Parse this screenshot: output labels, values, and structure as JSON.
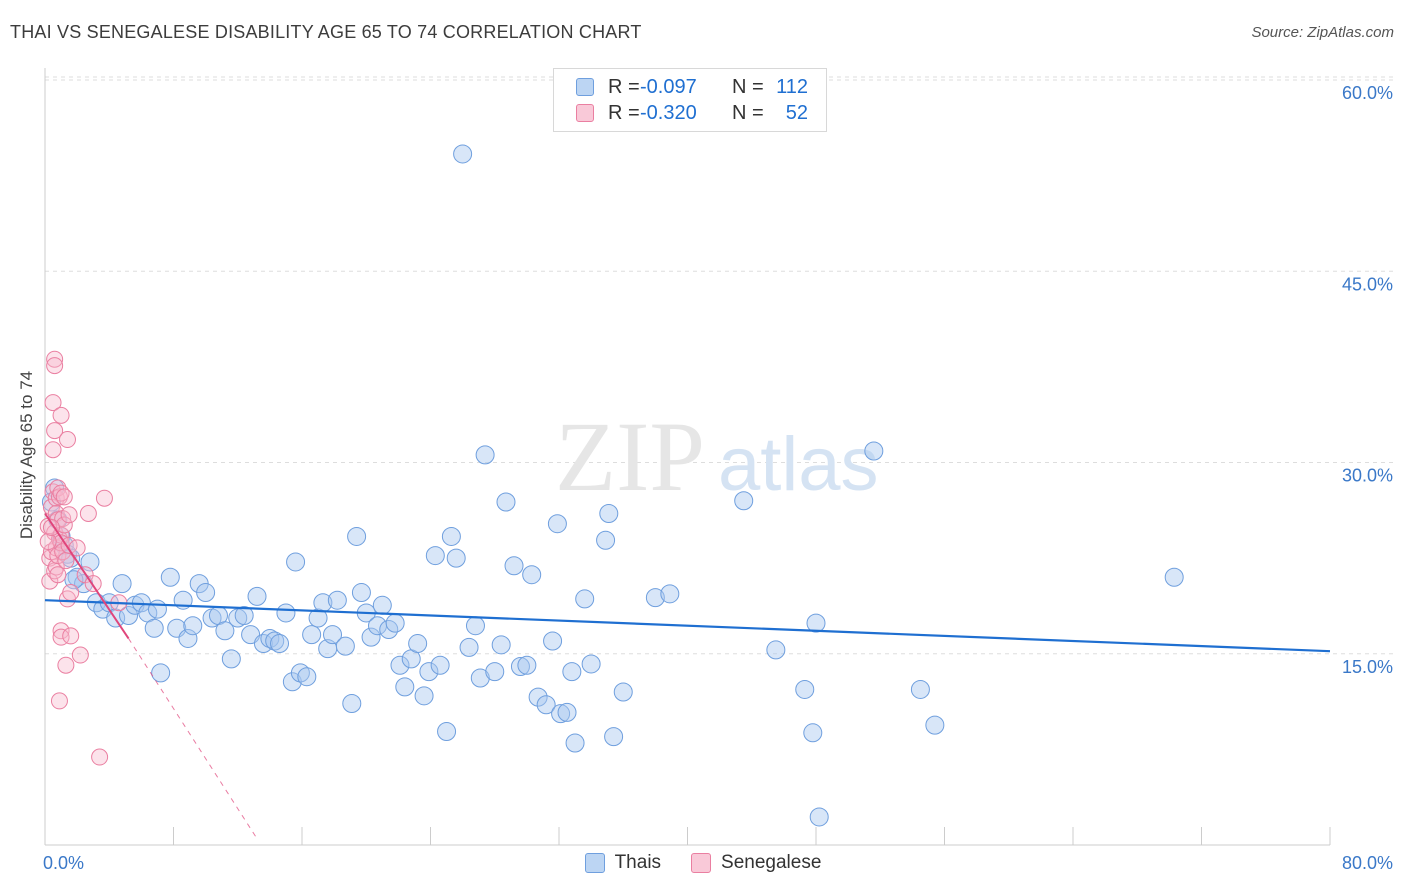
{
  "title": "THAI VS SENEGALESE DISABILITY AGE 65 TO 74 CORRELATION CHART",
  "source": "Source: ZipAtlas.com",
  "watermark": {
    "zip": "ZIP",
    "atlas": "atlas"
  },
  "colors": {
    "thais_fill": "#a8c8f0",
    "thais_stroke": "#6f9fde",
    "thais_line": "#1f6fd1",
    "senegalese_fill": "#f7b8cc",
    "senegalese_stroke": "#ea7fa1",
    "senegalese_line": "#e0457b",
    "axis_text": "#3a78c8",
    "grid": "#dddddd"
  },
  "legend": {
    "thais": {
      "r_label": "R =",
      "r_value": "-0.097",
      "n_label": "N =",
      "n_value": "112"
    },
    "senegalese": {
      "r_label": "R =",
      "r_value": "-0.320",
      "n_label": "N =",
      "n_value": "52"
    }
  },
  "chart_data": {
    "type": "scatter",
    "title": "THAI VS SENEGALESE DISABILITY AGE 65 TO 74 CORRELATION CHART",
    "xlabel": "",
    "ylabel": "Disability Age 65 to 74",
    "xlim": [
      0,
      80
    ],
    "ylim": [
      0,
      60
    ],
    "x_tick_labels": [
      "0.0%",
      "80.0%"
    ],
    "y_ticks": [
      15,
      30,
      45,
      60
    ],
    "y_tick_labels": [
      "15.0%",
      "30.0%",
      "45.0%",
      "60.0%"
    ],
    "legend_position": "bottom-center",
    "series": [
      {
        "name": "Thais",
        "trend": {
          "x": [
            0,
            80
          ],
          "y": [
            19.2,
            15.2
          ]
        },
        "points": [
          [
            0.6,
            28.0
          ],
          [
            0.8,
            25.5
          ],
          [
            1.0,
            24.2
          ],
          [
            1.2,
            23.5
          ],
          [
            1.4,
            22.8
          ],
          [
            1.6,
            22.5
          ],
          [
            2.0,
            21.0
          ],
          [
            2.4,
            20.5
          ],
          [
            2.8,
            22.2
          ],
          [
            3.2,
            19.0
          ],
          [
            3.6,
            18.5
          ],
          [
            4.0,
            19.0
          ],
          [
            4.4,
            17.8
          ],
          [
            4.8,
            20.5
          ],
          [
            5.2,
            18.0
          ],
          [
            5.6,
            18.8
          ],
          [
            6.0,
            19.0
          ],
          [
            6.4,
            18.2
          ],
          [
            6.8,
            17.0
          ],
          [
            7.0,
            18.5
          ],
          [
            7.2,
            13.5
          ],
          [
            7.8,
            21.0
          ],
          [
            8.2,
            17.0
          ],
          [
            8.6,
            19.2
          ],
          [
            8.9,
            16.2
          ],
          [
            9.2,
            17.2
          ],
          [
            9.6,
            20.5
          ],
          [
            10.0,
            19.8
          ],
          [
            10.4,
            17.8
          ],
          [
            10.8,
            18.0
          ],
          [
            11.2,
            16.8
          ],
          [
            11.6,
            14.6
          ],
          [
            12.0,
            17.8
          ],
          [
            12.4,
            18.0
          ],
          [
            12.8,
            16.5
          ],
          [
            13.2,
            19.5
          ],
          [
            13.6,
            15.8
          ],
          [
            14.0,
            16.2
          ],
          [
            14.3,
            16.0
          ],
          [
            14.6,
            15.8
          ],
          [
            15.0,
            18.2
          ],
          [
            15.4,
            12.8
          ],
          [
            15.6,
            22.2
          ],
          [
            15.9,
            13.5
          ],
          [
            16.3,
            13.2
          ],
          [
            16.6,
            16.5
          ],
          [
            17.0,
            17.8
          ],
          [
            17.3,
            19.0
          ],
          [
            17.6,
            15.4
          ],
          [
            17.9,
            16.5
          ],
          [
            18.2,
            19.2
          ],
          [
            18.7,
            15.6
          ],
          [
            19.1,
            11.1
          ],
          [
            19.4,
            24.2
          ],
          [
            19.7,
            19.8
          ],
          [
            20.0,
            18.2
          ],
          [
            20.3,
            16.3
          ],
          [
            20.7,
            17.2
          ],
          [
            21.0,
            18.8
          ],
          [
            21.4,
            16.9
          ],
          [
            21.8,
            17.4
          ],
          [
            22.1,
            14.1
          ],
          [
            22.4,
            12.4
          ],
          [
            22.8,
            14.6
          ],
          [
            23.2,
            15.8
          ],
          [
            23.6,
            11.7
          ],
          [
            23.9,
            13.6
          ],
          [
            24.3,
            22.7
          ],
          [
            24.6,
            14.1
          ],
          [
            25.0,
            8.9
          ],
          [
            25.3,
            24.2
          ],
          [
            25.6,
            22.5
          ],
          [
            26.0,
            54.2
          ],
          [
            26.4,
            15.5
          ],
          [
            26.8,
            17.2
          ],
          [
            27.1,
            13.1
          ],
          [
            27.4,
            30.6
          ],
          [
            28.0,
            13.6
          ],
          [
            28.4,
            15.7
          ],
          [
            28.7,
            26.9
          ],
          [
            29.2,
            21.9
          ],
          [
            29.6,
            14.0
          ],
          [
            30.0,
            14.1
          ],
          [
            30.3,
            21.2
          ],
          [
            30.7,
            11.6
          ],
          [
            31.2,
            11.0
          ],
          [
            31.6,
            16.0
          ],
          [
            31.9,
            25.2
          ],
          [
            32.1,
            10.3
          ],
          [
            32.5,
            10.4
          ],
          [
            32.8,
            13.6
          ],
          [
            33.0,
            8.0
          ],
          [
            33.6,
            19.3
          ],
          [
            34.0,
            14.2
          ],
          [
            34.9,
            23.9
          ],
          [
            35.1,
            26.0
          ],
          [
            35.4,
            8.5
          ],
          [
            36.0,
            12.0
          ],
          [
            38.0,
            19.4
          ],
          [
            38.9,
            19.7
          ],
          [
            43.5,
            27.0
          ],
          [
            45.5,
            15.3
          ],
          [
            47.3,
            12.2
          ],
          [
            47.8,
            8.8
          ],
          [
            48.0,
            17.4
          ],
          [
            48.2,
            2.2
          ],
          [
            51.6,
            30.9
          ],
          [
            54.5,
            12.2
          ],
          [
            55.4,
            9.4
          ],
          [
            70.3,
            21.0
          ],
          [
            0.4,
            26.9
          ],
          [
            1.8,
            20.8
          ]
        ]
      },
      {
        "name": "Senegalese",
        "trend": {
          "x": [
            0,
            5.2
          ],
          "y": [
            26.0,
            16.2
          ]
        },
        "trend_dashed": {
          "x": [
            5.2,
            13.2
          ],
          "y": [
            16.2,
            0.5
          ]
        },
        "points": [
          [
            0.2,
            25.0
          ],
          [
            0.3,
            22.5
          ],
          [
            0.3,
            20.7
          ],
          [
            0.4,
            26.5
          ],
          [
            0.4,
            23.0
          ],
          [
            0.5,
            34.7
          ],
          [
            0.5,
            31.0
          ],
          [
            0.5,
            27.7
          ],
          [
            0.6,
            38.1
          ],
          [
            0.6,
            37.6
          ],
          [
            0.6,
            32.5
          ],
          [
            0.6,
            24.5
          ],
          [
            0.6,
            21.5
          ],
          [
            0.7,
            27.2
          ],
          [
            0.7,
            26.0
          ],
          [
            0.7,
            23.3
          ],
          [
            0.7,
            21.8
          ],
          [
            0.8,
            28.0
          ],
          [
            0.8,
            25.5
          ],
          [
            0.8,
            22.7
          ],
          [
            0.8,
            21.2
          ],
          [
            0.9,
            27.3
          ],
          [
            0.9,
            24.0
          ],
          [
            0.9,
            11.3
          ],
          [
            1.0,
            33.7
          ],
          [
            1.0,
            27.6
          ],
          [
            1.0,
            24.3
          ],
          [
            1.0,
            23.7
          ],
          [
            1.0,
            16.8
          ],
          [
            1.0,
            16.3
          ],
          [
            1.1,
            25.6
          ],
          [
            1.1,
            23.0
          ],
          [
            1.2,
            27.3
          ],
          [
            1.2,
            25.1
          ],
          [
            1.3,
            22.3
          ],
          [
            1.4,
            31.8
          ],
          [
            1.4,
            19.3
          ],
          [
            1.5,
            25.9
          ],
          [
            1.5,
            23.5
          ],
          [
            1.6,
            19.8
          ],
          [
            1.6,
            16.4
          ],
          [
            2.0,
            23.3
          ],
          [
            2.2,
            14.9
          ],
          [
            2.5,
            21.2
          ],
          [
            2.7,
            26.0
          ],
          [
            3.0,
            20.5
          ],
          [
            3.4,
            6.9
          ],
          [
            3.7,
            27.2
          ],
          [
            4.6,
            19.0
          ],
          [
            0.2,
            23.8
          ],
          [
            0.4,
            24.9
          ],
          [
            1.3,
            14.1
          ]
        ]
      }
    ]
  },
  "bottom_legend": {
    "thais": "Thais",
    "senegalese": "Senegalese"
  }
}
